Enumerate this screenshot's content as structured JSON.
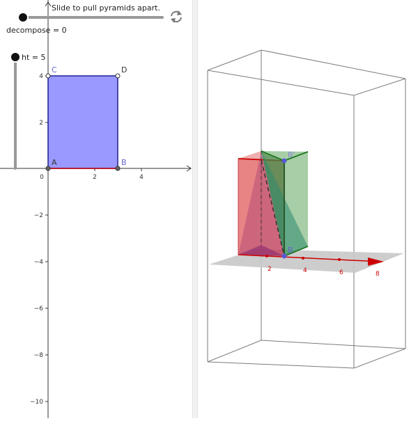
{
  "caption": "Slide to pull pyramids apart.",
  "sliders": {
    "decompose": {
      "label": "decompose = 0",
      "value": 0
    },
    "ht": {
      "label": "ht = 5",
      "value": 5
    }
  },
  "icons": {
    "reset": "refresh-icon"
  },
  "graphics2d": {
    "x_ticks": [
      "0",
      "2",
      "4"
    ],
    "y_ticks": [
      "4",
      "2",
      "−2",
      "−4",
      "−6",
      "−8",
      "−10"
    ],
    "points": {
      "A": "A",
      "B": "B",
      "C": "C",
      "D": "D"
    },
    "polygon_color": "#9999ff",
    "edge_color": "#1e1e96",
    "base_edge_color": "#cc0000"
  },
  "graphics3d": {
    "axis_ticks": [
      "2",
      "4",
      "6",
      "8"
    ],
    "point_labels": {
      "B": "B",
      "B_prime": "B'"
    },
    "colors": {
      "red_pyramid": "#e06060",
      "green_pyramid": "#4f9e4f",
      "axis": "#cc0000",
      "box": "#808080",
      "floor": "#c8c8c8"
    }
  }
}
